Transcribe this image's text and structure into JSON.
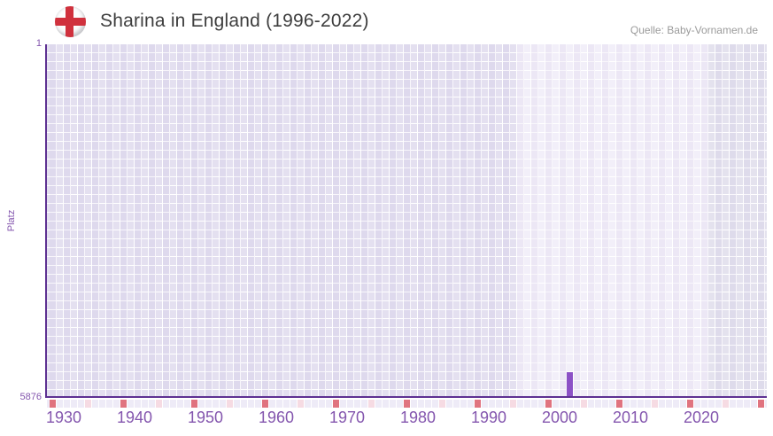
{
  "header": {
    "title": "Sharina in England (1996-2022)",
    "source_credit": "Quelle: Baby-Vornamen.de",
    "flag_icon": "england-flag"
  },
  "chart_data": {
    "type": "bar",
    "title": "Sharina in England (1996-2022)",
    "name": "Sharina",
    "region": "England",
    "ylabel": "Platz",
    "y_axis": {
      "min": 1,
      "max": 5876,
      "inverted": true,
      "top_tick": "1",
      "bottom_tick": "5876"
    },
    "x_axis": {
      "start_year": 1930,
      "end_year": 2030,
      "tick_labels": [
        "1930",
        "1940",
        "1950",
        "1960",
        "1970",
        "1980",
        "1990",
        "2000",
        "2010",
        "2020"
      ],
      "major_tick_years": [
        1930,
        1940,
        1950,
        1960,
        1970,
        1980,
        1990,
        2000,
        2010,
        2020,
        2030
      ],
      "minor_tick_years": [
        1935,
        1945,
        1955,
        1965,
        1975,
        1985,
        1995,
        2005,
        2015,
        2025
      ]
    },
    "data_period": {
      "from": 1996,
      "to": 2022
    },
    "points": [
      {
        "year": 2003,
        "platz": 5470
      }
    ],
    "grid": true,
    "legend": false,
    "colors": {
      "bar": "#8c51c6",
      "axis_line": "#5e3192",
      "tick_label": "#8456ae",
      "title_text": "#3e3e3e",
      "source_text": "#9b9b9b",
      "cell_before_period": "#e4e0f0",
      "cell_period": "#f2eff9",
      "cell_after_period": "#e4e2ee",
      "tick_row_cell": "#eeebf7",
      "major_tick": "#e0737f",
      "minor_tick": "#f6dbe3",
      "flag_red": "#d0313d"
    }
  }
}
